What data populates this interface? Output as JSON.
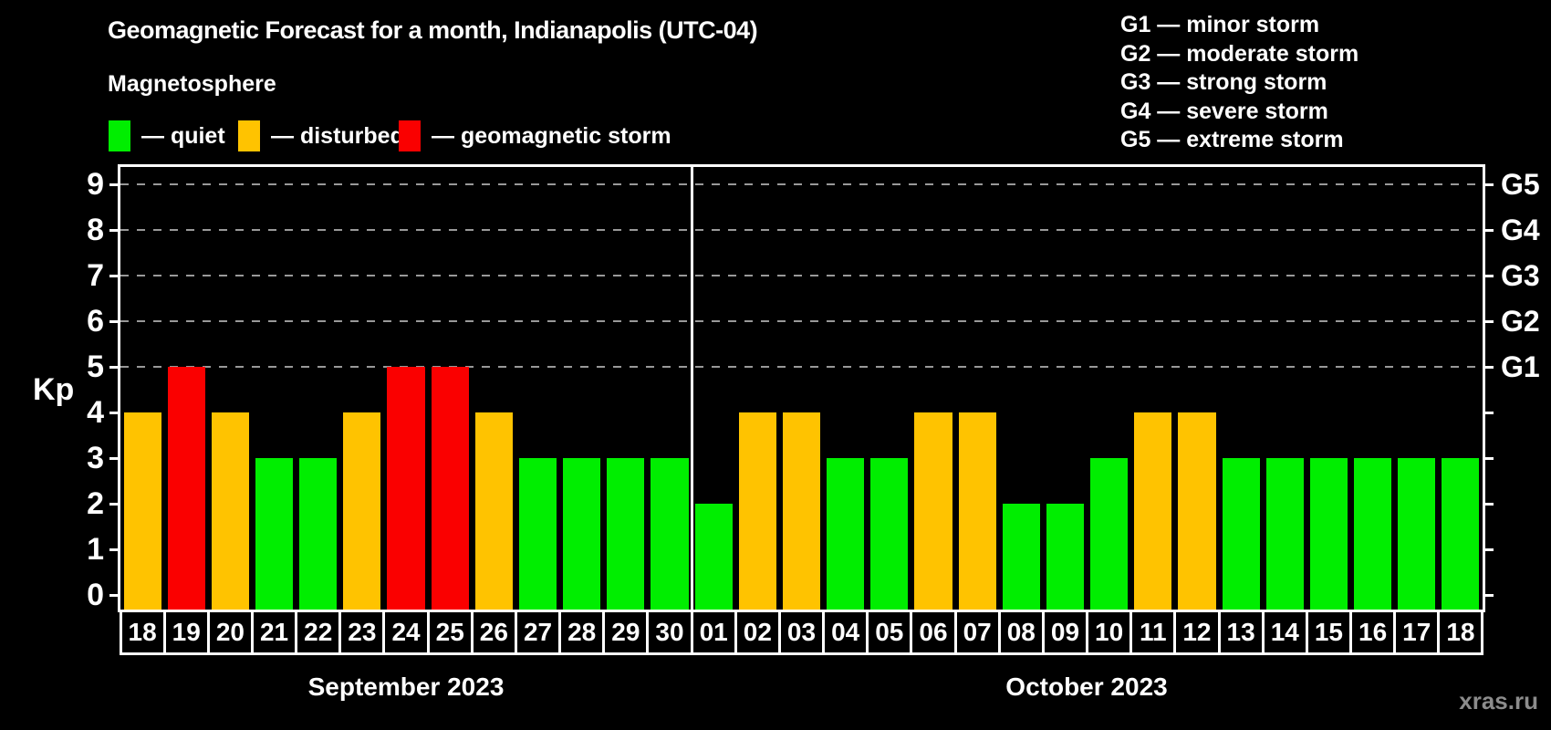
{
  "title": "Geomagnetic Forecast for a month, Indianapolis (UTC-04)",
  "subtitle": "Magnetosphere",
  "legend": {
    "quiet_label": "— quiet",
    "disturbed_label": "— disturbed",
    "storm_label": "— geomagnetic storm"
  },
  "g_legend": [
    "G1 — minor storm",
    "G2 — moderate storm",
    "G3 — strong storm",
    "G4 — severe storm",
    "G5 — extreme storm"
  ],
  "colors": {
    "quiet": "#00ee00",
    "disturbed": "#ffc300",
    "storm": "#fa0000",
    "grid": "#999999",
    "axis": "#ffffff",
    "watermark": "#8c8c8c"
  },
  "watermark": "xras.ru",
  "chart_data": {
    "type": "bar",
    "title": "Geomagnetic Forecast for a month, Indianapolis (UTC-04)",
    "ylabel": "Kp",
    "ylim": [
      0,
      9
    ],
    "grid": "dashed horizontal at G-storm levels",
    "legend_position": "top-left",
    "grid_levels": [
      5,
      6,
      7,
      8,
      9
    ],
    "kp_ticks": [
      "0",
      "1",
      "2",
      "3",
      "4",
      "5",
      "6",
      "7",
      "8",
      "9"
    ],
    "g_labels": [
      {
        "level": 5,
        "label": "G1"
      },
      {
        "level": 6,
        "label": "G2"
      },
      {
        "level": 7,
        "label": "G3"
      },
      {
        "level": 8,
        "label": "G4"
      },
      {
        "level": 9,
        "label": "G5"
      }
    ],
    "groups": [
      {
        "label": "September 2023",
        "dates": [
          "18",
          "19",
          "20",
          "21",
          "22",
          "23",
          "24",
          "25",
          "26",
          "27",
          "28",
          "29",
          "30"
        ],
        "kp": [
          4,
          5,
          4,
          3,
          3,
          4,
          5,
          5,
          4,
          3,
          3,
          3,
          3
        ],
        "status": [
          "disturbed",
          "storm",
          "disturbed",
          "quiet",
          "quiet",
          "disturbed",
          "storm",
          "storm",
          "disturbed",
          "quiet",
          "quiet",
          "quiet",
          "quiet"
        ]
      },
      {
        "label": "October 2023",
        "dates": [
          "01",
          "02",
          "03",
          "04",
          "05",
          "06",
          "07",
          "08",
          "09",
          "10",
          "11",
          "12",
          "13",
          "14",
          "15",
          "16",
          "17",
          "18"
        ],
        "kp": [
          2,
          4,
          4,
          3,
          3,
          4,
          4,
          2,
          2,
          3,
          4,
          4,
          3,
          3,
          3,
          3,
          3,
          3
        ],
        "status": [
          "quiet",
          "disturbed",
          "disturbed",
          "quiet",
          "quiet",
          "disturbed",
          "disturbed",
          "quiet",
          "quiet",
          "quiet",
          "disturbed",
          "disturbed",
          "quiet",
          "quiet",
          "quiet",
          "quiet",
          "quiet",
          "quiet"
        ]
      }
    ]
  }
}
